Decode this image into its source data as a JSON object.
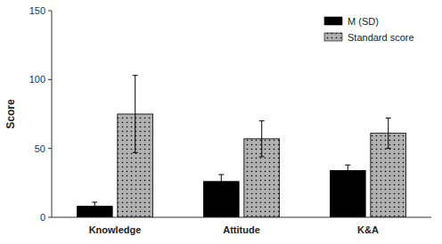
{
  "chart_data": {
    "type": "bar",
    "categories": [
      "Knowledge",
      "Attitude",
      "K&A"
    ],
    "series": [
      {
        "name": "M (SD)",
        "color": "#000000",
        "values": [
          8,
          26,
          34
        ],
        "errors": [
          3,
          5,
          4
        ]
      },
      {
        "name": "Standard score",
        "color": "#b0b0b0",
        "values": [
          75,
          57,
          61
        ],
        "errors": [
          28,
          13,
          11
        ]
      }
    ],
    "ylabel": "Score",
    "ylim": [
      0,
      150
    ],
    "yticks": [
      0,
      50,
      100,
      150
    ],
    "legend": "upper right",
    "grid": false
  }
}
